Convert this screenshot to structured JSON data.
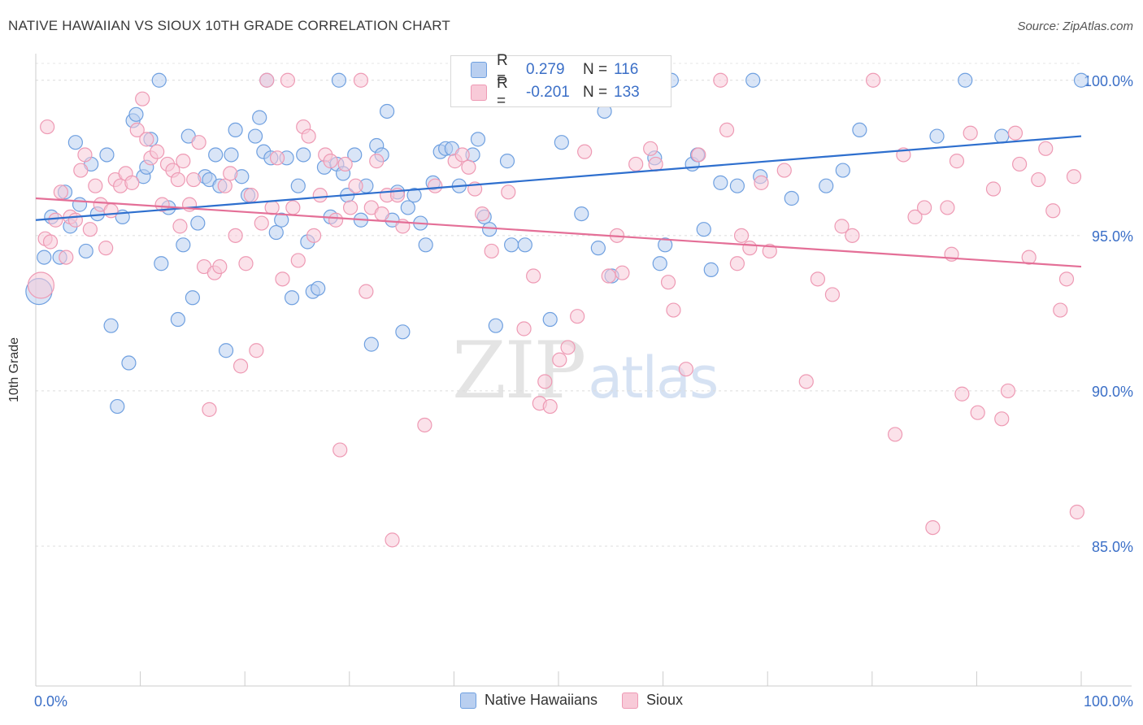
{
  "header": {
    "title": "NATIVE HAWAIIAN VS SIOUX 10TH GRADE CORRELATION CHART",
    "source": "Source: ZipAtlas.com"
  },
  "legend_stats": [
    {
      "r_label": "R =",
      "r_value": "0.279",
      "n_label": "N =",
      "n_value": "116",
      "color": "#6fa0e0",
      "fill": "#b9cff0"
    },
    {
      "r_label": "R =",
      "r_value": "-0.201",
      "n_label": "N =",
      "n_value": "133",
      "color": "#ee9ab4",
      "fill": "#f8cad8"
    }
  ],
  "bottom_legend": [
    {
      "label": "Native Hawaiians",
      "fill": "#b9cff0",
      "stroke": "#6fa0e0"
    },
    {
      "label": "Sioux",
      "fill": "#f8cad8",
      "stroke": "#ee9ab4"
    }
  ],
  "watermark": {
    "zip": "ZIP",
    "atlas": "atlas"
  },
  "chart_data": {
    "type": "scatter",
    "title": "NATIVE HAWAIIAN VS SIOUX 10TH GRADE CORRELATION CHART",
    "xlabel": "",
    "ylabel": "10th Grade",
    "xlim": [
      0,
      100
    ],
    "ylim": [
      80.5,
      100.7
    ],
    "x_tick_labels": [
      "0.0%",
      "100.0%"
    ],
    "y_ticks": [
      85,
      90,
      95,
      100
    ],
    "y_tick_labels": [
      "85.0%",
      "90.0%",
      "95.0%",
      "100.0%"
    ],
    "grid": true,
    "colors": {
      "blue_line": "#2e6fce",
      "pink_line": "#e46f97",
      "blue_point": "#6fa0e0",
      "pink_point": "#ee9ab4",
      "tick_text": "#3b6fc7"
    },
    "series": [
      {
        "name": "Native Hawaiians",
        "trend": {
          "x": [
            0,
            100
          ],
          "y": [
            95.5,
            98.2
          ]
        },
        "points": [
          [
            0.8,
            94.3
          ],
          [
            1.5,
            95.6
          ],
          [
            2.3,
            94.3
          ],
          [
            2.8,
            96.4
          ],
          [
            3.3,
            95.3
          ],
          [
            3.8,
            98
          ],
          [
            4.2,
            96
          ],
          [
            4.8,
            94.5
          ],
          [
            5.3,
            97.3
          ],
          [
            5.9,
            95.7
          ],
          [
            6.8,
            97.6
          ],
          [
            7.2,
            92.1
          ],
          [
            7.8,
            89.5
          ],
          [
            8.3,
            95.6
          ],
          [
            8.9,
            90.9
          ],
          [
            9.3,
            98.7
          ],
          [
            9.6,
            98.9
          ],
          [
            10.3,
            96.9
          ],
          [
            10.6,
            97.2
          ],
          [
            11,
            98.1
          ],
          [
            12,
            94.1
          ],
          [
            12.7,
            95.9
          ],
          [
            13.6,
            92.3
          ],
          [
            14.1,
            94.7
          ],
          [
            14.6,
            98.2
          ],
          [
            15,
            93
          ],
          [
            15.5,
            95.4
          ],
          [
            16.2,
            96.9
          ],
          [
            16.6,
            96.8
          ],
          [
            17.2,
            97.6
          ],
          [
            17.6,
            96.6
          ],
          [
            18.2,
            91.3
          ],
          [
            18.7,
            97.6
          ],
          [
            19.1,
            98.4
          ],
          [
            19.7,
            96.9
          ],
          [
            20.3,
            96.3
          ],
          [
            21,
            98.2
          ],
          [
            21.4,
            98.8
          ],
          [
            21.8,
            97.7
          ],
          [
            22.5,
            97.5
          ],
          [
            23,
            95.1
          ],
          [
            23.5,
            95.5
          ],
          [
            24,
            97.5
          ],
          [
            24.5,
            93
          ],
          [
            25.1,
            96.6
          ],
          [
            25.6,
            97.6
          ],
          [
            26,
            94.8
          ],
          [
            26.5,
            93.2
          ],
          [
            27,
            93.3
          ],
          [
            27.6,
            97.2
          ],
          [
            28.2,
            95.6
          ],
          [
            28.8,
            97.3
          ],
          [
            29.4,
            97
          ],
          [
            29.8,
            96.3
          ],
          [
            30.5,
            97.6
          ],
          [
            31.1,
            95.5
          ],
          [
            31.6,
            96.6
          ],
          [
            32.1,
            91.5
          ],
          [
            32.6,
            97.9
          ],
          [
            33.1,
            97.6
          ],
          [
            33.6,
            99
          ],
          [
            34.1,
            95.5
          ],
          [
            34.6,
            96.4
          ],
          [
            35.1,
            91.9
          ],
          [
            35.6,
            95.9
          ],
          [
            36.2,
            96.3
          ],
          [
            36.8,
            95.4
          ],
          [
            37.3,
            94.7
          ],
          [
            38,
            96.7
          ],
          [
            38.7,
            97.7
          ],
          [
            39.2,
            97.8
          ],
          [
            39.8,
            97.8
          ],
          [
            40.5,
            96.6
          ],
          [
            41.2,
            100
          ],
          [
            41.8,
            97.6
          ],
          [
            42.3,
            98.1
          ],
          [
            42.9,
            95.6
          ],
          [
            43.4,
            95.2
          ],
          [
            44,
            92.1
          ],
          [
            45.1,
            97.4
          ],
          [
            45.5,
            94.7
          ],
          [
            46.8,
            94.7
          ],
          [
            49.2,
            92.3
          ],
          [
            50.3,
            98
          ],
          [
            52.2,
            95.7
          ],
          [
            53.8,
            94.6
          ],
          [
            54.4,
            99
          ],
          [
            55.1,
            93.7
          ],
          [
            56.2,
            100
          ],
          [
            57.6,
            100
          ],
          [
            59.2,
            97.5
          ],
          [
            59.7,
            94.1
          ],
          [
            60.2,
            94.7
          ],
          [
            60.8,
            100
          ],
          [
            62.8,
            97.3
          ],
          [
            63.3,
            97.6
          ],
          [
            63.9,
            95.2
          ],
          [
            64.6,
            93.9
          ],
          [
            65.5,
            96.7
          ],
          [
            67.1,
            96.6
          ],
          [
            68.6,
            100
          ],
          [
            69.3,
            96.9
          ],
          [
            72.3,
            96.2
          ],
          [
            75.6,
            96.6
          ],
          [
            77.2,
            97.1
          ],
          [
            78.8,
            98.4
          ],
          [
            86.2,
            98.2
          ],
          [
            88.9,
            100
          ],
          [
            92.4,
            98.2
          ],
          [
            100,
            100
          ],
          [
            0.3,
            93.2
          ],
          [
            11.8,
            100
          ],
          [
            29,
            100
          ],
          [
            48.1,
            100
          ],
          [
            52.9,
            100
          ],
          [
            22.1,
            100
          ]
        ]
      },
      {
        "name": "Sioux",
        "trend": {
          "x": [
            0,
            100
          ],
          "y": [
            96.2,
            94
          ]
        },
        "points": [
          [
            0.5,
            93.4
          ],
          [
            0.9,
            94.9
          ],
          [
            1.4,
            94.8
          ],
          [
            1.9,
            95.5
          ],
          [
            2.4,
            96.4
          ],
          [
            2.9,
            94.3
          ],
          [
            3.3,
            95.6
          ],
          [
            3.8,
            95.5
          ],
          [
            4.3,
            97.1
          ],
          [
            4.7,
            97.6
          ],
          [
            5.2,
            95.2
          ],
          [
            5.7,
            96.6
          ],
          [
            6.2,
            96
          ],
          [
            6.7,
            94.6
          ],
          [
            7.2,
            95.8
          ],
          [
            7.6,
            96.8
          ],
          [
            8.1,
            96.6
          ],
          [
            8.6,
            97
          ],
          [
            9.2,
            96.7
          ],
          [
            9.7,
            98.4
          ],
          [
            10.2,
            99.4
          ],
          [
            10.6,
            98.1
          ],
          [
            11,
            97.5
          ],
          [
            11.6,
            97.7
          ],
          [
            12.1,
            96
          ],
          [
            12.6,
            97.3
          ],
          [
            13.1,
            97.1
          ],
          [
            13.6,
            96.8
          ],
          [
            14.1,
            97.4
          ],
          [
            14.7,
            96
          ],
          [
            15.1,
            96.8
          ],
          [
            15.6,
            98
          ],
          [
            16.1,
            94
          ],
          [
            16.6,
            89.4
          ],
          [
            17.1,
            93.8
          ],
          [
            17.6,
            94
          ],
          [
            18.1,
            96.6
          ],
          [
            18.6,
            97
          ],
          [
            19.1,
            95
          ],
          [
            19.6,
            90.8
          ],
          [
            20.1,
            94.1
          ],
          [
            20.6,
            96.3
          ],
          [
            21.1,
            91.3
          ],
          [
            21.6,
            95.4
          ],
          [
            22.1,
            100
          ],
          [
            22.6,
            95.9
          ],
          [
            23.1,
            97.5
          ],
          [
            23.6,
            93.6
          ],
          [
            24.1,
            100
          ],
          [
            24.6,
            95.9
          ],
          [
            25.1,
            94.2
          ],
          [
            25.6,
            98.5
          ],
          [
            26.1,
            98.2
          ],
          [
            26.6,
            95
          ],
          [
            27.2,
            96.3
          ],
          [
            27.7,
            97.6
          ],
          [
            28.2,
            97.4
          ],
          [
            28.7,
            95.5
          ],
          [
            29.1,
            88.1
          ],
          [
            29.6,
            97.3
          ],
          [
            30.1,
            95.9
          ],
          [
            30.6,
            96.6
          ],
          [
            31.1,
            100
          ],
          [
            31.6,
            93.2
          ],
          [
            32.1,
            95.9
          ],
          [
            32.6,
            97.4
          ],
          [
            33.1,
            95.7
          ],
          [
            33.6,
            96.3
          ],
          [
            34.1,
            85.2
          ],
          [
            34.6,
            96.3
          ],
          [
            35.1,
            95.3
          ],
          [
            37.2,
            88.9
          ],
          [
            38.2,
            96.6
          ],
          [
            40.1,
            97.4
          ],
          [
            40.8,
            97.6
          ],
          [
            41.4,
            97.2
          ],
          [
            42,
            96.5
          ],
          [
            42.7,
            95.7
          ],
          [
            43.6,
            94.5
          ],
          [
            45.2,
            96.4
          ],
          [
            46.7,
            92
          ],
          [
            47.6,
            93.7
          ],
          [
            48.2,
            89.6
          ],
          [
            48.7,
            90.3
          ],
          [
            49.2,
            89.5
          ],
          [
            50.1,
            91
          ],
          [
            50.9,
            91.4
          ],
          [
            51.8,
            92.4
          ],
          [
            52.5,
            97.7
          ],
          [
            54.8,
            93.7
          ],
          [
            55.6,
            95
          ],
          [
            56.1,
            93.8
          ],
          [
            57.4,
            97.3
          ],
          [
            58.8,
            97.8
          ],
          [
            59.3,
            97.3
          ],
          [
            60.5,
            93.5
          ],
          [
            61,
            92.6
          ],
          [
            62.2,
            90.7
          ],
          [
            63.4,
            97.6
          ],
          [
            65.5,
            100
          ],
          [
            66.1,
            98.4
          ],
          [
            67.1,
            94.1
          ],
          [
            67.5,
            95
          ],
          [
            68.3,
            94.6
          ],
          [
            69.4,
            96.7
          ],
          [
            70.2,
            94.5
          ],
          [
            71.6,
            97.1
          ],
          [
            73.7,
            90.3
          ],
          [
            74.8,
            93.6
          ],
          [
            76.2,
            93.1
          ],
          [
            77.1,
            95.3
          ],
          [
            78.1,
            95
          ],
          [
            80.1,
            100
          ],
          [
            82.2,
            88.6
          ],
          [
            83,
            97.6
          ],
          [
            84.1,
            95.6
          ],
          [
            85,
            95.9
          ],
          [
            85.8,
            85.6
          ],
          [
            87.2,
            95.9
          ],
          [
            87.6,
            94.4
          ],
          [
            88.1,
            97.4
          ],
          [
            88.6,
            89.9
          ],
          [
            89.4,
            98.3
          ],
          [
            90.1,
            89.3
          ],
          [
            91.6,
            96.5
          ],
          [
            92.4,
            89.1
          ],
          [
            93,
            90
          ],
          [
            93.7,
            98.3
          ],
          [
            94.1,
            97.3
          ],
          [
            95,
            94.3
          ],
          [
            95.9,
            96.8
          ],
          [
            96.6,
            97.8
          ],
          [
            97.3,
            95.8
          ],
          [
            98,
            92.6
          ],
          [
            98.6,
            93.6
          ],
          [
            99.3,
            96.9
          ],
          [
            99.6,
            86.1
          ],
          [
            1.1,
            98.5
          ],
          [
            13.8,
            95.3
          ]
        ]
      }
    ]
  }
}
